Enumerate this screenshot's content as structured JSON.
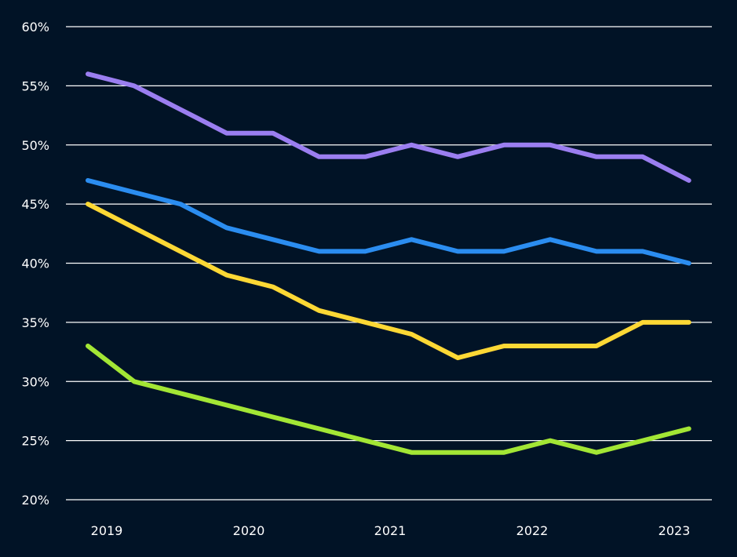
{
  "colors": {
    "background": "#011326",
    "grid": "#ffffff",
    "text": "#ffffff"
  },
  "chart_data": {
    "type": "line",
    "x": [
      "2018-11",
      "2019-03",
      "2019-07",
      "2019-11",
      "2020-03",
      "2020-07",
      "2020-11",
      "2021-03",
      "2021-07",
      "2021-11",
      "2022-03",
      "2022-07",
      "2022-11",
      "2023-03"
    ],
    "x_tick_labels": [
      "2019",
      "2020",
      "2021",
      "2022",
      "2023"
    ],
    "y_tick_labels": [
      "20%",
      "25%",
      "30%",
      "35%",
      "40%",
      "45%",
      "50%",
      "55%",
      "60%"
    ],
    "ylim": [
      20,
      60
    ],
    "y_unit": "%",
    "grid": "horizontal",
    "legend": "none",
    "series": [
      {
        "color": "#9b7ef0",
        "values": [
          56,
          55,
          53,
          51,
          51,
          49,
          49,
          50,
          49,
          50,
          50,
          49,
          49,
          47
        ]
      },
      {
        "color": "#2b8df0",
        "values": [
          47,
          46,
          45,
          43,
          42,
          41,
          41,
          42,
          41,
          41,
          42,
          41,
          41,
          40
        ]
      },
      {
        "color": "#fdd835",
        "values": [
          45,
          43,
          41,
          39,
          38,
          36,
          35,
          34,
          32,
          33,
          33,
          33,
          35,
          35
        ]
      },
      {
        "color": "#a3e635",
        "values": [
          33,
          30,
          29,
          28,
          27,
          26,
          25,
          24,
          24,
          24,
          25,
          24,
          25,
          26
        ]
      }
    ]
  }
}
